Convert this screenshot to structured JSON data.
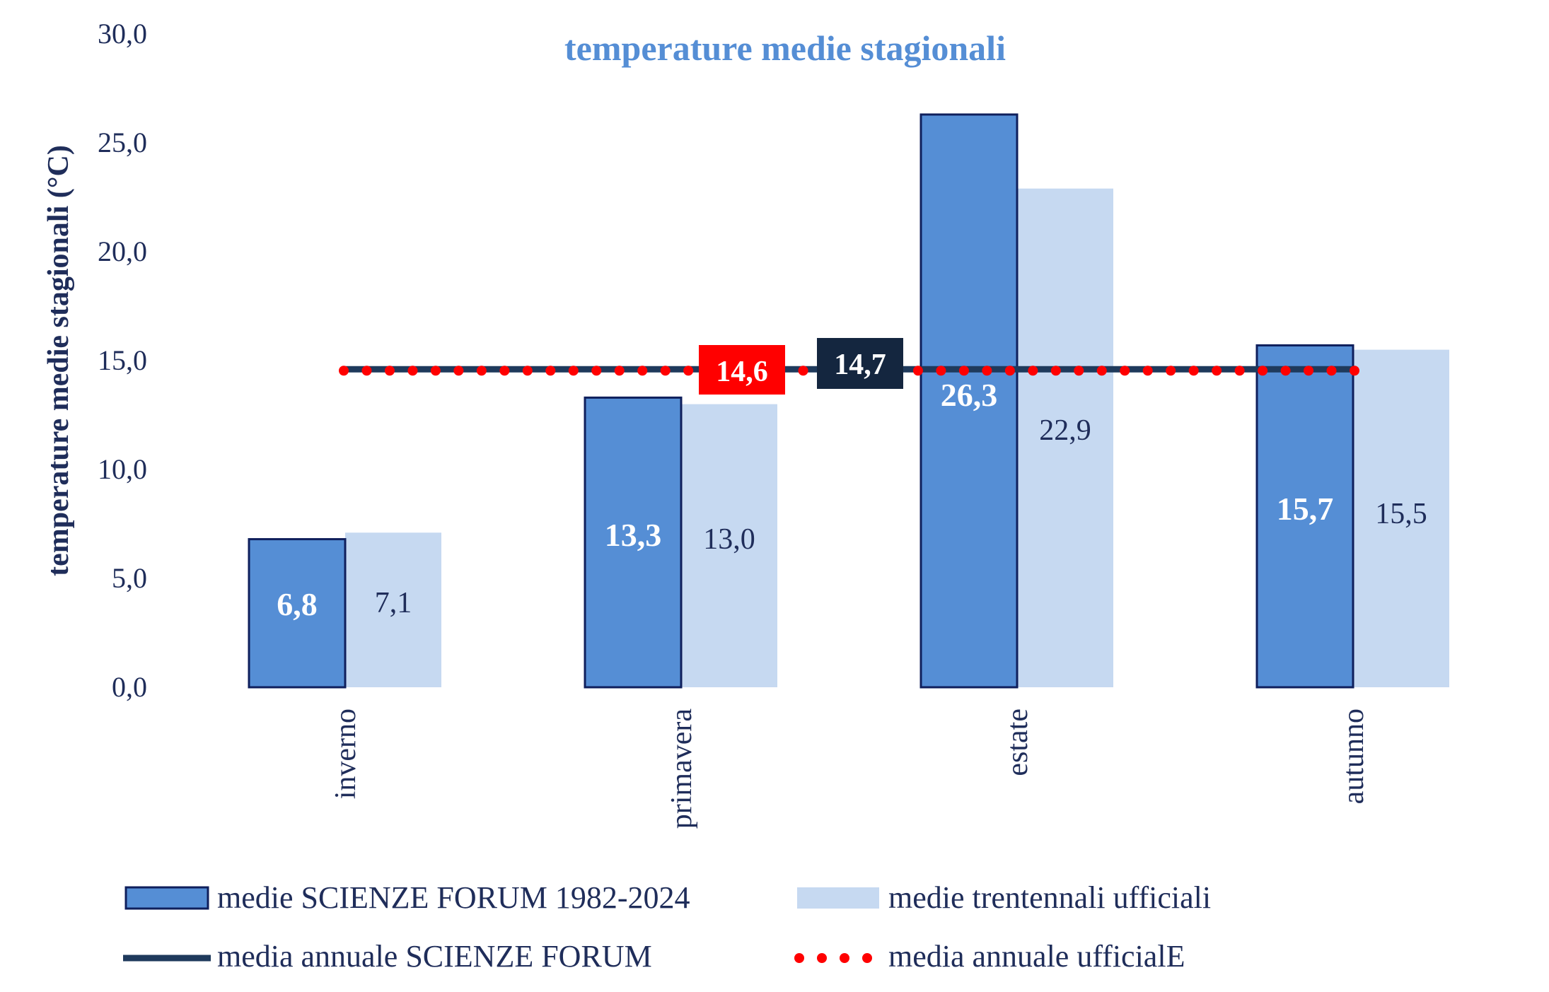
{
  "chart_data": {
    "type": "bar",
    "title": "temperature medie stagionali",
    "ylabel": "temperature medie stagionali (°C)",
    "xlabel": "",
    "ylim": [
      0,
      30
    ],
    "yticks": [
      0,
      5,
      10,
      15,
      20,
      25,
      30
    ],
    "ytick_labels": [
      "0,0",
      "5,0",
      "10,0",
      "15,0",
      "20,0",
      "25,0",
      "30,0"
    ],
    "categories": [
      "inverno",
      "primavera",
      "estate",
      "autunno"
    ],
    "series": [
      {
        "name": "medie SCIENZE FORUM 1982-2024",
        "values": [
          6.8,
          13.3,
          26.3,
          15.7
        ],
        "value_labels": [
          "6,8",
          "13,3",
          "26,3",
          "15,7"
        ],
        "color": "#558ED5",
        "border": "#0F1F5C"
      },
      {
        "name": "medie trentennali ufficiali",
        "values": [
          7.1,
          13.0,
          22.9,
          15.5
        ],
        "value_labels": [
          "7,1",
          "13,0",
          "22,9",
          "15,5"
        ],
        "color": "#C6D9F1"
      }
    ],
    "lines": [
      {
        "name": "media annuale SCIENZE FORUM",
        "value": 14.7,
        "value_label": "14,7",
        "color": "#1F3A5C",
        "style": "solid"
      },
      {
        "name": "media annuale ufficialE",
        "value": 14.6,
        "value_label": "14,6",
        "color": "#FF0000",
        "style": "dotted"
      }
    ],
    "legend_position": "bottom",
    "colors": {
      "title": "#558ED5",
      "text": "#1F2D5A",
      "avg_official_box": "#FF0000",
      "avg_forum_box": "#14263F"
    }
  }
}
